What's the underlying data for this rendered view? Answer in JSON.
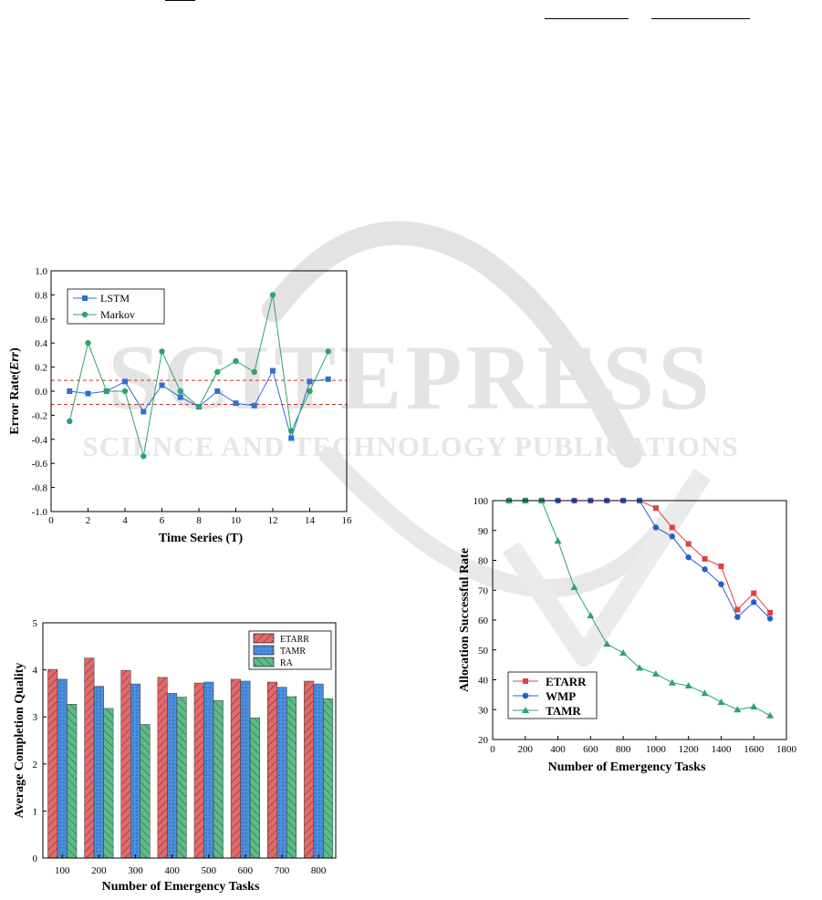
{
  "watermark": {
    "line1": "SCITEPRESS",
    "line2": "SCIENCE AND TECHNOLOGY PUBLICATIONS"
  },
  "chart_data": [
    {
      "type": "line",
      "xlabel": "Time Series (T)",
      "ylabel_main": "Error Rate(",
      "ylabel_italic": "Err",
      "ylabel_close": ")",
      "xlim": [
        0,
        16
      ],
      "ylim": [
        -1.0,
        1.0
      ],
      "x_ticks": [
        "0",
        "2",
        "4",
        "6",
        "8",
        "10",
        "12",
        "14",
        "16"
      ],
      "y_ticks": [
        "-1.0",
        "-0.8",
        "-0.6",
        "-0.4",
        "-0.2",
        "0.0",
        "0.2",
        "0.4",
        "0.6",
        "0.8",
        "1.0"
      ],
      "reference_lines": [
        0.09,
        -0.11
      ],
      "legend_position": "top-left",
      "x": [
        1,
        2,
        3,
        4,
        5,
        6,
        7,
        8,
        9,
        10,
        11,
        12,
        13,
        14,
        15
      ],
      "series": [
        {
          "name": "LSTM",
          "color": "#2f6fd0",
          "marker": "square",
          "values": [
            0.0,
            -0.02,
            0.0,
            0.08,
            -0.17,
            0.05,
            -0.05,
            -0.13,
            0.0,
            -0.1,
            -0.12,
            0.17,
            -0.39,
            0.08,
            0.1
          ]
        },
        {
          "name": "Markov",
          "color": "#2ea36b",
          "marker": "circle",
          "values": [
            -0.25,
            0.4,
            0.0,
            0.0,
            -0.54,
            0.33,
            0.0,
            -0.13,
            0.16,
            0.25,
            0.16,
            0.8,
            -0.33,
            0.0,
            0.33
          ]
        }
      ]
    },
    {
      "type": "bar",
      "xlabel": "Number of Emergency Tasks",
      "ylabel": "Average Completion Quality",
      "ylim": [
        0,
        5
      ],
      "y_ticks": [
        "0",
        "1",
        "2",
        "3",
        "4",
        "5"
      ],
      "legend_position": "top-right",
      "categories": [
        "100",
        "200",
        "300",
        "400",
        "500",
        "600",
        "700",
        "800"
      ],
      "series": [
        {
          "name": "ETARR",
          "color": "#e26a6a",
          "values": [
            4.01,
            4.25,
            3.99,
            3.84,
            3.72,
            3.8,
            3.74,
            3.76
          ]
        },
        {
          "name": "TAMR",
          "color": "#4a8fe0",
          "values": [
            3.8,
            3.65,
            3.7,
            3.5,
            3.74,
            3.76,
            3.63,
            3.7
          ]
        },
        {
          "name": "RA",
          "color": "#5dbb86",
          "values": [
            3.27,
            3.18,
            2.84,
            3.42,
            3.35,
            2.98,
            3.43,
            3.39
          ]
        }
      ]
    },
    {
      "type": "line",
      "xlabel": "Number of Emergency Tasks",
      "ylabel": "Allocation Successful Rate",
      "xlim": [
        0,
        1800
      ],
      "ylim": [
        20,
        100
      ],
      "x_ticks": [
        "0",
        "200",
        "400",
        "600",
        "800",
        "1000",
        "1200",
        "1400",
        "1600",
        "1800"
      ],
      "y_ticks": [
        "20",
        "30",
        "40",
        "50",
        "60",
        "70",
        "80",
        "90",
        "100"
      ],
      "legend_position": "bottom-left",
      "x": [
        100,
        200,
        300,
        400,
        500,
        600,
        700,
        800,
        900,
        1000,
        1100,
        1200,
        1300,
        1400,
        1500,
        1600,
        1700
      ],
      "series": [
        {
          "name": "ETARR",
          "color": "#e04040",
          "marker": "square",
          "values": [
            100,
            100,
            100,
            100,
            100,
            100,
            100,
            100,
            100,
            97.5,
            91,
            85.5,
            80.5,
            78,
            63.5,
            69,
            62.5
          ]
        },
        {
          "name": "WMP",
          "color": "#2060d0",
          "marker": "circle",
          "values": [
            100,
            100,
            100,
            100,
            100,
            100,
            100,
            100,
            100,
            91,
            88,
            81,
            77,
            72,
            61,
            66,
            60.5
          ]
        },
        {
          "name": "TAMR",
          "color": "#2ea36b",
          "marker": "triangle",
          "values": [
            100,
            100,
            100,
            86.5,
            71,
            61.5,
            52,
            49,
            44,
            42,
            39,
            38,
            35.5,
            32.5,
            30,
            31,
            28
          ]
        }
      ]
    }
  ]
}
